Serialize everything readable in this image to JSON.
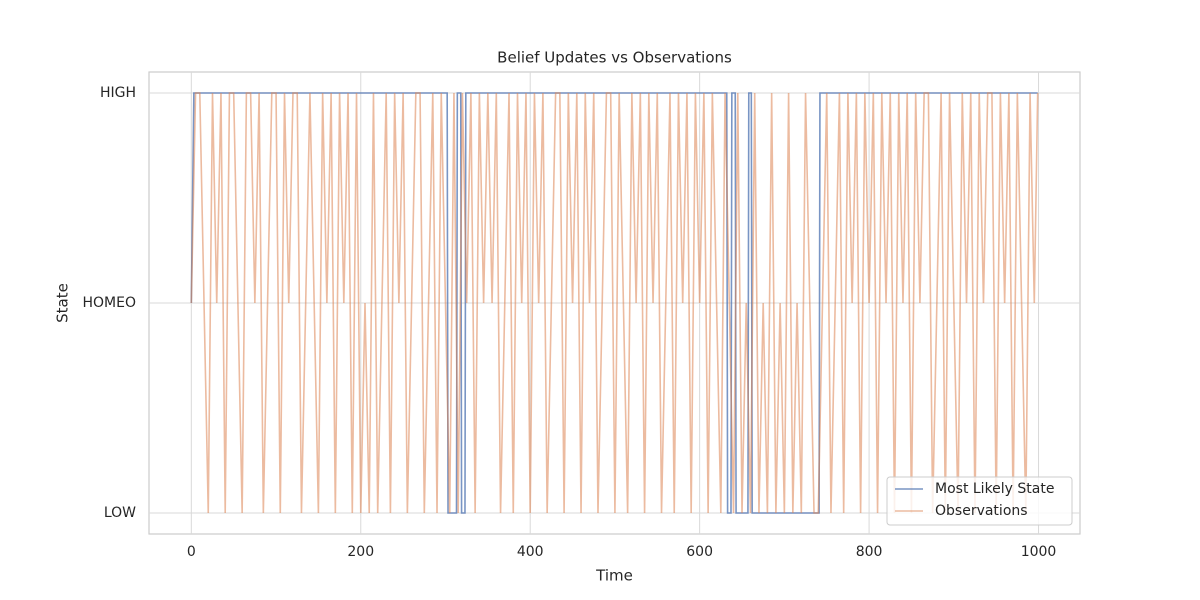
{
  "chart_data": {
    "type": "line",
    "title": "Belief Updates vs Observations",
    "x_label": "Time",
    "y_label": "State",
    "xlim": [
      -49.95,
      1048.95
    ],
    "xticks": [
      0,
      200,
      400,
      600,
      800,
      1000
    ],
    "ylim": [
      -0.1,
      2.1
    ],
    "yticks": [
      {
        "value": 0,
        "label": "LOW"
      },
      {
        "value": 1,
        "label": "HOMEO"
      },
      {
        "value": 2,
        "label": "HIGH"
      }
    ],
    "grid": true,
    "legend": "lower right",
    "series": [
      {
        "name": "Most Likely State",
        "color": "#4c72b0",
        "x": [
          0,
          3,
          302,
          303,
          313,
          314,
          318,
          319,
          323,
          324,
          632,
          633,
          637,
          638,
          642,
          643,
          657,
          658,
          661,
          662,
          741,
          742,
          999
        ],
        "values": [
          1,
          2,
          2,
          0,
          0,
          2,
          2,
          0,
          0,
          2,
          2,
          0,
          0,
          2,
          2,
          0,
          0,
          2,
          2,
          0,
          0,
          2,
          2
        ]
      },
      {
        "name": "Observations",
        "color": "#dd8452",
        "x": [
          0,
          5,
          10,
          15,
          20,
          25,
          30,
          35,
          40,
          45,
          50,
          55,
          60,
          65,
          70,
          75,
          80,
          85,
          90,
          95,
          100,
          105,
          110,
          115,
          120,
          125,
          130,
          135,
          140,
          145,
          150,
          155,
          160,
          165,
          170,
          175,
          180,
          185,
          190,
          195,
          200,
          205,
          210,
          215,
          220,
          225,
          230,
          235,
          240,
          245,
          250,
          255,
          260,
          265,
          270,
          275,
          280,
          285,
          290,
          295,
          300,
          305,
          310,
          315,
          320,
          325,
          330,
          335,
          340,
          345,
          350,
          355,
          360,
          365,
          370,
          375,
          380,
          385,
          390,
          395,
          400,
          405,
          410,
          415,
          420,
          425,
          430,
          435,
          440,
          445,
          450,
          455,
          460,
          465,
          470,
          475,
          480,
          485,
          490,
          495,
          500,
          505,
          510,
          515,
          520,
          525,
          530,
          535,
          540,
          545,
          550,
          555,
          560,
          565,
          570,
          575,
          580,
          585,
          590,
          595,
          600,
          605,
          610,
          615,
          620,
          625,
          630,
          635,
          640,
          645,
          650,
          655,
          660,
          665,
          670,
          675,
          680,
          685,
          690,
          695,
          700,
          705,
          710,
          715,
          720,
          725,
          730,
          735,
          740,
          745,
          750,
          755,
          760,
          765,
          770,
          775,
          780,
          785,
          790,
          795,
          800,
          805,
          810,
          815,
          820,
          825,
          830,
          835,
          840,
          845,
          850,
          855,
          860,
          865,
          870,
          875,
          880,
          885,
          890,
          895,
          900,
          905,
          910,
          915,
          920,
          925,
          930,
          935,
          940,
          945,
          950,
          955,
          960,
          965,
          970,
          975,
          980,
          985,
          990,
          995,
          999
        ],
        "values": [
          1,
          2,
          2,
          1,
          0,
          2,
          1,
          2,
          0,
          2,
          2,
          1,
          0,
          2,
          2,
          1,
          2,
          0,
          1,
          2,
          2,
          0,
          2,
          1,
          2,
          2,
          0,
          1,
          2,
          1,
          0,
          2,
          1,
          2,
          0,
          2,
          1,
          2,
          0,
          2,
          0,
          1,
          0,
          2,
          0,
          1,
          2,
          0,
          2,
          1,
          2,
          0,
          1,
          2,
          2,
          0,
          1,
          2,
          0,
          2,
          1,
          0,
          2,
          0,
          2,
          1,
          2,
          0,
          2,
          1,
          2,
          1,
          2,
          0,
          1,
          2,
          0,
          2,
          1,
          2,
          0,
          2,
          1,
          2,
          0,
          1,
          2,
          2,
          0,
          2,
          1,
          2,
          0,
          2,
          1,
          2,
          0,
          1,
          2,
          2,
          0,
          2,
          1,
          0,
          2,
          1,
          2,
          0,
          2,
          1,
          2,
          0,
          1,
          2,
          0,
          2,
          1,
          2,
          0,
          2,
          1,
          2,
          0,
          2,
          1,
          0,
          2,
          1,
          0,
          2,
          0,
          1,
          0,
          2,
          0,
          1,
          0,
          2,
          0,
          1,
          0,
          2,
          0,
          1,
          0,
          2,
          1,
          0,
          0,
          1,
          2,
          0,
          1,
          2,
          0,
          2,
          1,
          2,
          0,
          2,
          1,
          2,
          0,
          2,
          1,
          2,
          0,
          2,
          1,
          2,
          0,
          2,
          1,
          2,
          2,
          0,
          1,
          2,
          0,
          2,
          1,
          0,
          2,
          1,
          2,
          0,
          2,
          1,
          2,
          2,
          0,
          2,
          1,
          2,
          0,
          2,
          1,
          0,
          2,
          1,
          2
        ]
      }
    ]
  }
}
